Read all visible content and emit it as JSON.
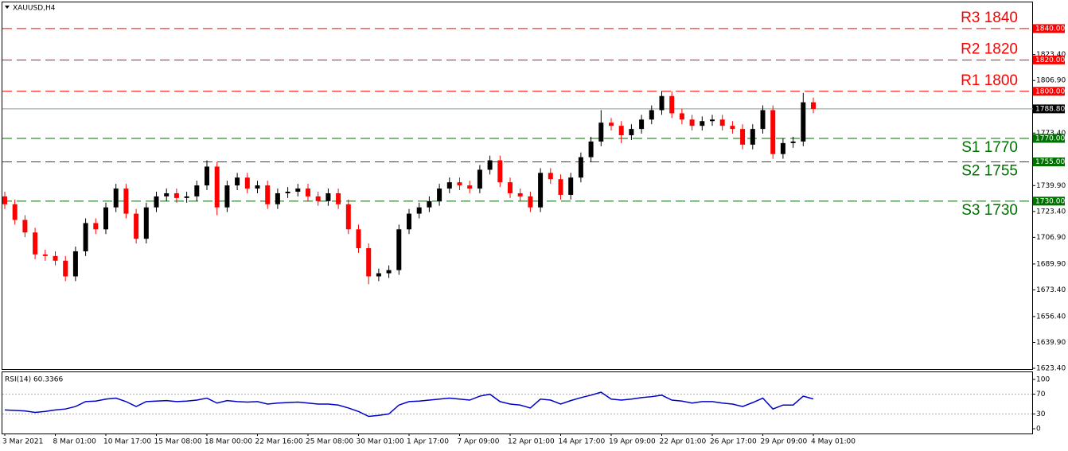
{
  "chart_data": {
    "type": "candlestick",
    "title": "XAUUSD,H4",
    "categories": [
      "3 Mar 2021",
      null,
      null,
      null,
      null,
      "8 Mar 01:00",
      null,
      null,
      null,
      null,
      "10 Mar 17:00",
      null,
      null,
      null,
      null,
      "15 Mar 08:00",
      null,
      null,
      null,
      null,
      "18 Mar 00:00",
      null,
      null,
      null,
      null,
      "22 Mar 16:00",
      null,
      null,
      null,
      null,
      "25 Mar 08:00",
      null,
      null,
      null,
      null,
      "30 Mar 01:00",
      null,
      null,
      null,
      null,
      "1 Apr 17:00",
      null,
      null,
      null,
      null,
      "7 Apr 09:00",
      null,
      null,
      null,
      null,
      "12 Apr 01:00",
      null,
      null,
      null,
      null,
      "14 Apr 17:00",
      null,
      null,
      null,
      null,
      "19 Apr 09:00",
      null,
      null,
      null,
      null,
      "22 Apr 01:00",
      null,
      null,
      null,
      null,
      "26 Apr 17:00",
      null,
      null,
      null,
      null,
      "29 Apr 09:00",
      null,
      null,
      null,
      null,
      "4 May 01:00"
    ],
    "open": [
      1733,
      1728,
      1718,
      1710,
      1696,
      1695,
      1692,
      1682,
      1698,
      1716,
      1712,
      1726,
      1738,
      1722,
      1706,
      1726,
      1733,
      1735,
      1732,
      1733,
      1740,
      1752,
      1726,
      1740,
      1745,
      1738,
      1740,
      1728,
      1735,
      1736,
      1738,
      1733,
      1730,
      1735,
      1728,
      1712,
      1700,
      1682,
      1684,
      1686,
      1712,
      1722,
      1726,
      1730,
      1738,
      1742,
      1740,
      1738,
      1750,
      1756,
      1742,
      1735,
      1733,
      1726,
      1748,
      1744,
      1734,
      1745,
      1758,
      1768,
      1780,
      1778,
      1772,
      1776,
      1782,
      1788,
      1797,
      1786,
      1782,
      1778,
      1781,
      1782,
      1778,
      1776,
      1766,
      1776,
      1788,
      1760,
      1767,
      1768,
      1793
    ],
    "high": [
      1736,
      1731,
      1721,
      1713,
      1699,
      1698,
      1695,
      1701,
      1719,
      1719,
      1729,
      1741,
      1741,
      1725,
      1729,
      1736,
      1738,
      1738,
      1736,
      1743,
      1756,
      1755,
      1743,
      1748,
      1748,
      1743,
      1743,
      1738,
      1739,
      1741,
      1741,
      1736,
      1738,
      1738,
      1731,
      1715,
      1703,
      1687,
      1689,
      1715,
      1725,
      1729,
      1733,
      1741,
      1745,
      1745,
      1743,
      1753,
      1759,
      1759,
      1745,
      1738,
      1736,
      1751,
      1751,
      1747,
      1748,
      1761,
      1771,
      1788,
      1783,
      1781,
      1779,
      1785,
      1791,
      1800,
      1800,
      1789,
      1785,
      1784,
      1785,
      1785,
      1781,
      1779,
      1779,
      1791,
      1791,
      1770,
      1771,
      1799,
      1796
    ],
    "low": [
      1725,
      1715,
      1707,
      1693,
      1692,
      1689,
      1679,
      1679,
      1695,
      1709,
      1709,
      1723,
      1719,
      1703,
      1703,
      1723,
      1730,
      1729,
      1729,
      1730,
      1737,
      1721,
      1723,
      1737,
      1735,
      1735,
      1725,
      1725,
      1732,
      1733,
      1730,
      1727,
      1727,
      1725,
      1709,
      1697,
      1677,
      1679,
      1681,
      1683,
      1709,
      1719,
      1723,
      1727,
      1735,
      1737,
      1735,
      1735,
      1747,
      1739,
      1732,
      1730,
      1723,
      1723,
      1741,
      1731,
      1731,
      1742,
      1755,
      1765,
      1775,
      1767,
      1769,
      1773,
      1779,
      1785,
      1783,
      1779,
      1775,
      1775,
      1778,
      1775,
      1773,
      1763,
      1763,
      1773,
      1757,
      1757,
      1764,
      1765,
      1786
    ],
    "close": [
      1728,
      1718,
      1710,
      1696,
      1695,
      1692,
      1682,
      1698,
      1716,
      1712,
      1726,
      1738,
      1722,
      1706,
      1726,
      1733,
      1735,
      1732,
      1733,
      1740,
      1752,
      1726,
      1740,
      1745,
      1738,
      1740,
      1728,
      1735,
      1736,
      1738,
      1733,
      1730,
      1735,
      1728,
      1712,
      1700,
      1682,
      1684,
      1686,
      1712,
      1722,
      1726,
      1730,
      1738,
      1742,
      1740,
      1738,
      1750,
      1756,
      1742,
      1735,
      1733,
      1726,
      1748,
      1744,
      1734,
      1745,
      1758,
      1768,
      1780,
      1778,
      1772,
      1776,
      1782,
      1788,
      1797,
      1786,
      1782,
      1778,
      1781,
      1782,
      1778,
      1776,
      1766,
      1776,
      1788,
      1760,
      1767,
      1768,
      1793,
      1788.8
    ],
    "up_color": "#000000",
    "down_color": "#ff0000",
    "ylim": [
      1622.4,
      1856.7
    ],
    "yticks": [
      {
        "value": 1623.4,
        "label": "1623.40"
      },
      {
        "value": 1639.9,
        "label": "1639.90"
      },
      {
        "value": 1656.4,
        "label": "1656.40"
      },
      {
        "value": 1673.4,
        "label": "1673.40"
      },
      {
        "value": 1689.9,
        "label": "1689.90"
      },
      {
        "value": 1706.9,
        "label": "1706.90"
      },
      {
        "value": 1723.4,
        "label": "1723.40"
      },
      {
        "value": 1739.9,
        "label": "1739.90"
      },
      {
        "value": 1773.4,
        "label": "1773.40"
      },
      {
        "value": 1806.9,
        "label": "1806.90"
      },
      {
        "value": 1823.4,
        "label": "1823.40"
      }
    ],
    "levels": [
      {
        "label": "R3 1840",
        "value": 1840,
        "value_label": "1840.00",
        "color": "#ff0000"
      },
      {
        "label": "R2 1820",
        "value": 1820,
        "value_label": "1820.00",
        "color": "#ff0000"
      },
      {
        "label": "R1 1800",
        "value": 1800,
        "value_label": "1800.00",
        "color": "#ff0000"
      },
      {
        "label": "S1 1770",
        "value": 1770,
        "value_label": "1770.00",
        "color": "#007000"
      },
      {
        "label": "S2 1755",
        "value": 1755,
        "value_label": "1755.00",
        "color": "#007000"
      },
      {
        "label": "S3 1730",
        "value": 1730,
        "value_label": "1730.00",
        "color": "#007000"
      }
    ],
    "current_price": {
      "value": 1788.8,
      "label": "1788.80"
    },
    "indicator": {
      "type": "line",
      "title": "RSI(14) 60.3366",
      "color": "#0000c8",
      "values": [
        38,
        37,
        36,
        33,
        35,
        38,
        40,
        45,
        55,
        56,
        60,
        62,
        55,
        45,
        55,
        56,
        57,
        55,
        56,
        58,
        62,
        52,
        57,
        55,
        54,
        55,
        50,
        52,
        53,
        54,
        52,
        50,
        50,
        48,
        42,
        35,
        25,
        27,
        30,
        48,
        55,
        56,
        58,
        60,
        62,
        60,
        58,
        66,
        70,
        55,
        50,
        48,
        42,
        60,
        58,
        50,
        57,
        63,
        68,
        74,
        60,
        58,
        60,
        63,
        65,
        68,
        58,
        56,
        52,
        55,
        55,
        52,
        50,
        45,
        53,
        62,
        40,
        48,
        48,
        66,
        60.3366
      ],
      "ylim": [
        -9.7,
        114.5
      ],
      "yticks": [
        0,
        30,
        70,
        100
      ],
      "levels": [
        30,
        70
      ]
    }
  }
}
